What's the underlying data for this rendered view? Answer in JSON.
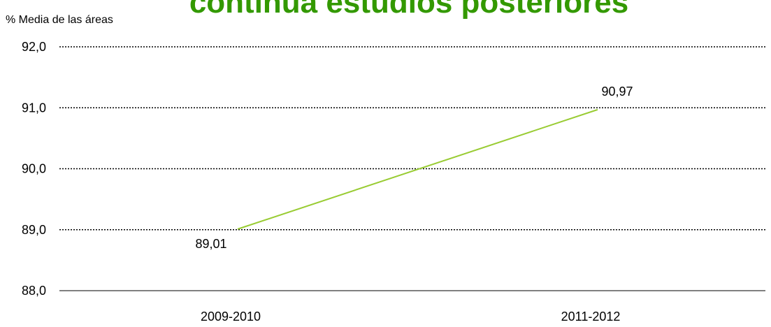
{
  "chart_data": {
    "type": "line",
    "title": "continúa estudios posteriores",
    "y_label": "% Media de las áreas",
    "categories": [
      "2009-2010",
      "2011-2012"
    ],
    "series": [
      {
        "name": "% Media de las áreas",
        "color": "#99cc33",
        "values": [
          89.01,
          90.97
        ],
        "value_labels": [
          "89,01",
          "90,97"
        ]
      }
    ],
    "ylim": [
      88,
      92
    ],
    "yticks": [
      {
        "value": 88,
        "label": "88,0"
      },
      {
        "value": 89,
        "label": "89,0"
      },
      {
        "value": 90,
        "label": "90,0"
      },
      {
        "value": 91,
        "label": "91,0"
      },
      {
        "value": 92,
        "label": "92,0"
      }
    ],
    "grid": true
  }
}
